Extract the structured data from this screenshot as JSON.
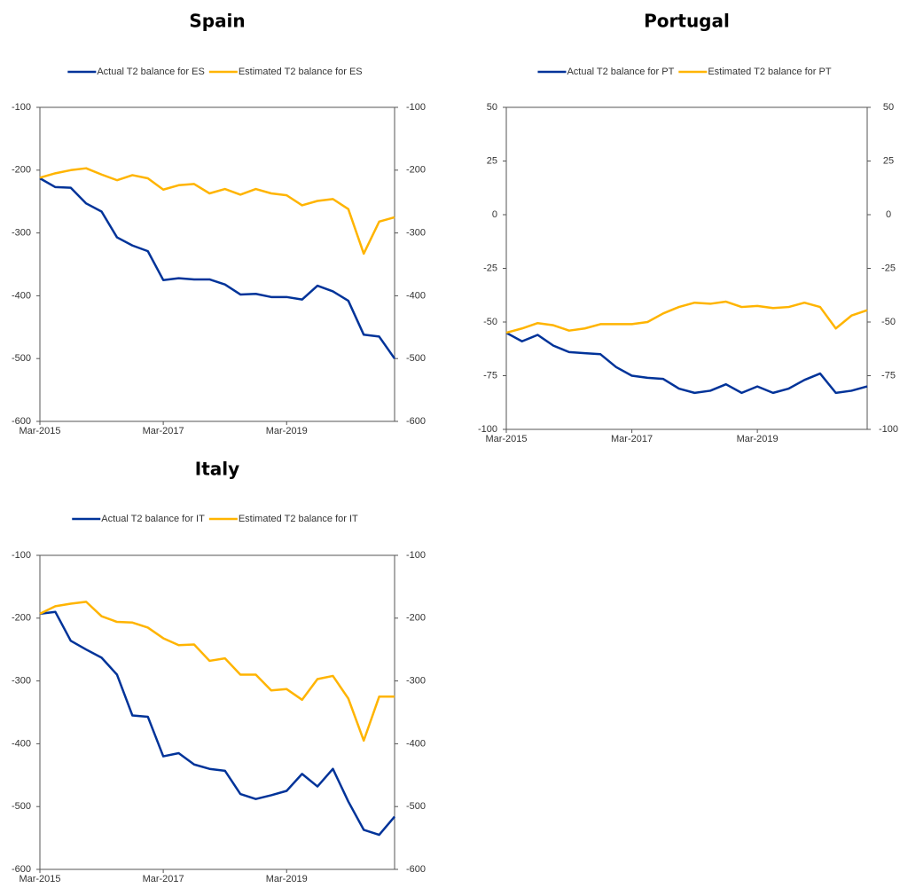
{
  "chart_data": [
    {
      "type": "line",
      "title": "Spain",
      "legend": "top",
      "categories": [
        "Mar-2015",
        null,
        null,
        null,
        null,
        null,
        null,
        null,
        "Mar-2017",
        null,
        null,
        null,
        null,
        null,
        null,
        null,
        "Mar-2019",
        null,
        null,
        null,
        null,
        null,
        null,
        null
      ],
      "series": [
        {
          "name": "Actual T2 balance for ES",
          "color": "#003399",
          "values": [
            -213,
            -227,
            -228,
            -253,
            -266,
            -307,
            -320,
            -329,
            -375,
            -372,
            -374,
            -374,
            -382,
            -398,
            -397,
            -402,
            -402,
            -406,
            -384,
            -393,
            -408,
            -462,
            -465,
            -500
          ]
        },
        {
          "name": "Estimated T2 balance for ES",
          "color": "#FFB400",
          "values": [
            -212,
            -205,
            -200,
            -197,
            -207,
            -216,
            -208,
            -213,
            -231,
            -224,
            -222,
            -237,
            -230,
            -239,
            -230,
            -237,
            -240,
            -256,
            -249,
            -246,
            -262,
            -333,
            -282,
            -275
          ]
        }
      ],
      "ylim": [
        -600,
        -100
      ],
      "yticks": [
        -600,
        -500,
        -400,
        -300,
        -200,
        -100
      ],
      "y2lim": [
        -600,
        -100
      ],
      "y2ticks": [
        -600,
        -500,
        -400,
        -300,
        -200,
        -100
      ]
    },
    {
      "type": "line",
      "title": "Portugal",
      "legend": "top",
      "categories": [
        "Mar-2015",
        null,
        null,
        null,
        null,
        null,
        null,
        null,
        "Mar-2017",
        null,
        null,
        null,
        null,
        null,
        null,
        null,
        "Mar-2019",
        null,
        null,
        null,
        null,
        null,
        null,
        null
      ],
      "series": [
        {
          "name": "Actual T2 balance for PT",
          "color": "#003399",
          "values": [
            -55,
            -59,
            -56,
            -61,
            -64,
            -64.5,
            -65,
            -71,
            -75,
            -76,
            -76.5,
            -81,
            -83,
            -82,
            -79,
            -83,
            -80,
            -83,
            -81,
            -77,
            -74,
            -83,
            -82,
            -80
          ]
        },
        {
          "name": "Estimated T2 balance for PT",
          "color": "#FFB400",
          "values": [
            -55,
            -53,
            -50.5,
            -51.5,
            -54,
            -53,
            -51,
            -51,
            -51,
            -50,
            -46,
            -43,
            -41,
            -41.5,
            -40.5,
            -43,
            -42.5,
            -43.5,
            -43,
            -41,
            -43,
            -53,
            -47,
            -44.5
          ]
        }
      ],
      "ylim": [
        -100,
        50
      ],
      "yticks": [
        -100,
        -75,
        -50,
        -25,
        0,
        25,
        50
      ],
      "y2lim": [
        -100,
        50
      ],
      "y2ticks": [
        -100,
        -75,
        -50,
        -25,
        0,
        25,
        50
      ]
    },
    {
      "type": "line",
      "title": "Italy",
      "legend": "top",
      "categories": [
        "Mar-2015",
        null,
        null,
        null,
        null,
        null,
        null,
        null,
        "Mar-2017",
        null,
        null,
        null,
        null,
        null,
        null,
        null,
        "Mar-2019",
        null,
        null,
        null,
        null,
        null,
        null,
        null
      ],
      "series": [
        {
          "name": "Actual T2 balance for IT",
          "color": "#003399",
          "values": [
            -193,
            -190,
            -236,
            -250,
            -263,
            -290,
            -355,
            -357,
            -420,
            -415,
            -433,
            -440,
            -443,
            -480,
            -488,
            -482,
            -475,
            -448,
            -468,
            -440,
            -492,
            -537,
            -545,
            -516
          ]
        },
        {
          "name": "Estimated T2 balance for IT",
          "color": "#FFB400",
          "values": [
            -193,
            -181,
            -177,
            -174,
            -197,
            -206,
            -207,
            -215,
            -232,
            -243,
            -242,
            -268,
            -264,
            -290,
            -290,
            -315,
            -313,
            -330,
            -297,
            -292,
            -328,
            -395,
            -325,
            -325
          ]
        }
      ],
      "ylim": [
        -600,
        -100
      ],
      "yticks": [
        -600,
        -500,
        -400,
        -300,
        -200,
        -100
      ],
      "y2lim": [
        -600,
        -100
      ],
      "y2ticks": [
        -600,
        -500,
        -400,
        -300,
        -200,
        -100
      ]
    }
  ]
}
